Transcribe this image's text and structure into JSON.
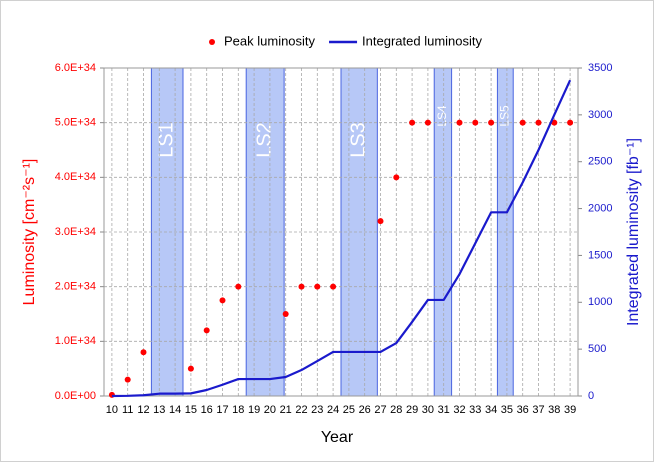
{
  "chart_data": {
    "type": "scatter_line",
    "x_label": "Year",
    "y_label": "Luminosity [cm⁻²s⁻¹]",
    "y2_label": "Integrated luminosity [fb⁻¹]",
    "x": [
      10,
      11,
      12,
      13,
      14,
      15,
      16,
      17,
      18,
      19,
      20,
      21,
      22,
      23,
      24,
      25,
      26,
      27,
      28,
      29,
      30,
      31,
      32,
      33,
      34,
      35,
      36,
      37,
      38,
      39
    ],
    "xlim": [
      9.5,
      39.5
    ],
    "xticks": [
      10,
      11,
      12,
      13,
      14,
      15,
      16,
      17,
      18,
      19,
      20,
      21,
      22,
      23,
      24,
      25,
      26,
      27,
      28,
      29,
      30,
      31,
      32,
      33,
      34,
      35,
      36,
      37,
      38,
      39
    ],
    "ylim": [
      0,
      6e+34
    ],
    "yticks": [
      {
        "value": 0,
        "label": "0.0E+00"
      },
      {
        "value": 1e+34,
        "label": "1.0E+34"
      },
      {
        "value": 2e+34,
        "label": "2.0E+34"
      },
      {
        "value": 3e+34,
        "label": "3.0E+34"
      },
      {
        "value": 4e+34,
        "label": "4.0E+34"
      },
      {
        "value": 5e+34,
        "label": "5.0E+34"
      },
      {
        "value": 6e+34,
        "label": "6.0E+34"
      }
    ],
    "y2lim": [
      0,
      3500
    ],
    "y2ticks": [
      0,
      500,
      1000,
      1500,
      2000,
      2500,
      3000,
      3500
    ],
    "grid": true,
    "legend": "top",
    "series": [
      {
        "name": "Peak luminosity",
        "color": "#ff0000",
        "kind": "markers",
        "axis": "y",
        "values": [
          2e+32,
          3e+33,
          8e+33,
          null,
          null,
          5e+33,
          1.2e+34,
          1.75e+34,
          2e+34,
          null,
          null,
          1.5e+34,
          2e+34,
          2e+34,
          2e+34,
          null,
          null,
          3.2e+34,
          4e+34,
          5e+34,
          5e+34,
          null,
          5e+34,
          5e+34,
          5e+34,
          null,
          5e+34,
          5e+34,
          5e+34,
          5e+34
        ]
      },
      {
        "name": "Integrated luminosity",
        "color": "#1a1acc",
        "kind": "line",
        "axis": "y2",
        "values": [
          0,
          2,
          8,
          25,
          25,
          28,
          64,
          120,
          181,
          181,
          181,
          203,
          277,
          373,
          470,
          470,
          470,
          470,
          565,
          790,
          1025,
          1025,
          1300,
          1630,
          1960,
          1960,
          2280,
          2625,
          3000,
          3370
        ]
      }
    ],
    "shutdowns": [
      {
        "label": "LS1",
        "start": 12.5,
        "end": 14.5
      },
      {
        "label": "LS2",
        "start": 18.5,
        "end": 20.9
      },
      {
        "label": "LS3",
        "start": 24.5,
        "end": 26.8
      },
      {
        "label": "LS4",
        "start": 30.4,
        "end": 31.5
      },
      {
        "label": "LS5",
        "start": 34.4,
        "end": 35.4
      }
    ]
  }
}
